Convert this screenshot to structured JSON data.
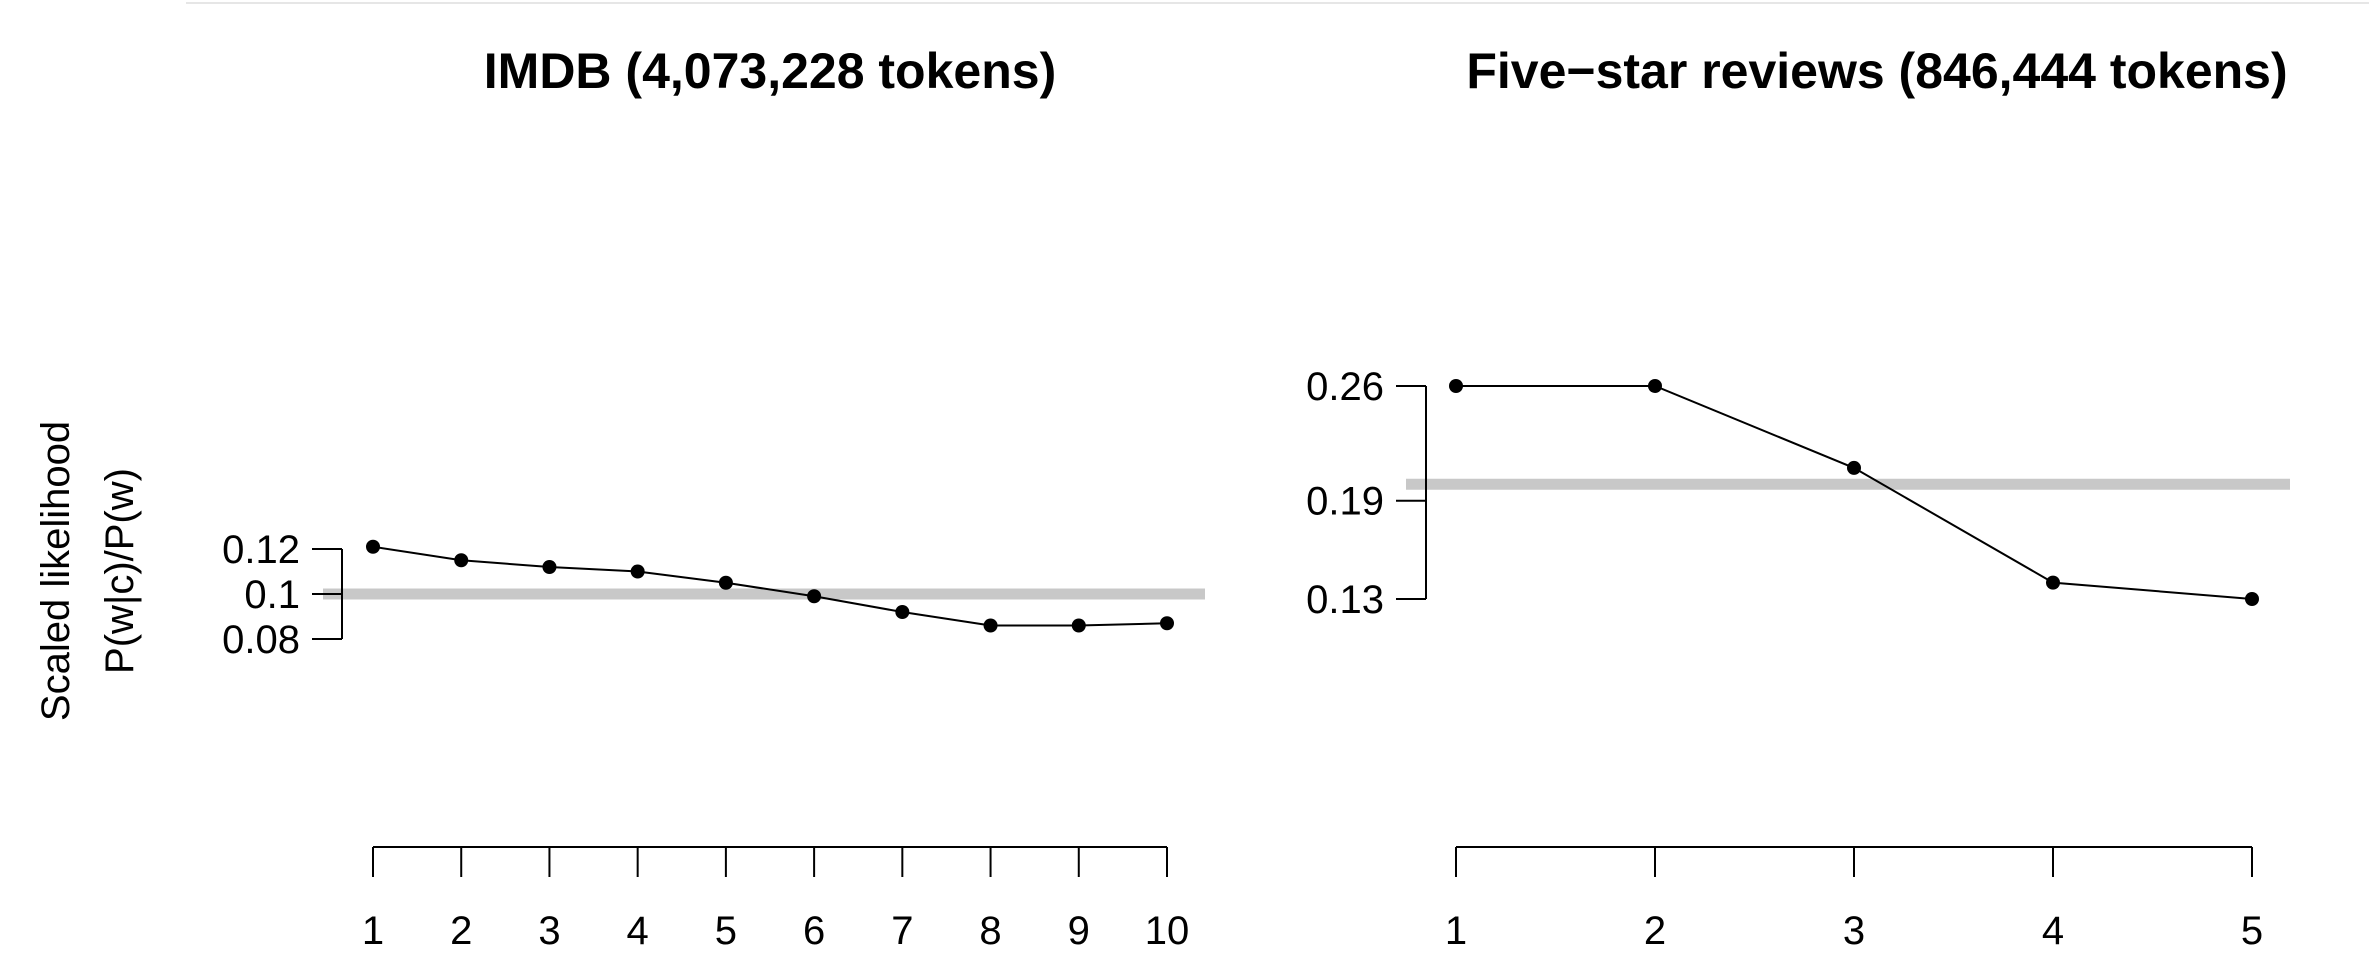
{
  "ylabel": {
    "line1": "Scaled likelihood",
    "line2": "P(w|c)/P(w)"
  },
  "chart_data": [
    {
      "type": "line",
      "title": "IMDB (4,073,228 tokens)",
      "xlabel": "",
      "ylabel": "Scaled likelihood P(w|c)/P(w)",
      "x": [
        1,
        2,
        3,
        4,
        5,
        6,
        7,
        8,
        9,
        10
      ],
      "series": [
        {
          "values": [
            0.121,
            0.115,
            0.112,
            0.11,
            0.105,
            0.099,
            0.092,
            0.086,
            0.086,
            0.087
          ]
        }
      ],
      "reference_line": 0.1,
      "reference_color": "#c8c8c8",
      "yticks": [
        0.08,
        0.1,
        0.12
      ],
      "ytick_labels": [
        "0.08",
        "0.1",
        "0.12"
      ],
      "xticks": [
        1,
        2,
        3,
        4,
        5,
        6,
        7,
        8,
        9,
        10
      ],
      "xtick_labels": [
        "1",
        "2",
        "3",
        "4",
        "5",
        "6",
        "7",
        "8",
        "9",
        "10"
      ],
      "grid": false,
      "legend": "none"
    },
    {
      "type": "line",
      "title": "Five−star reviews (846,444 tokens)",
      "xlabel": "",
      "ylabel": "",
      "x": [
        1,
        2,
        3,
        4,
        5
      ],
      "series": [
        {
          "values": [
            0.26,
            0.26,
            0.21,
            0.14,
            0.13
          ]
        }
      ],
      "reference_line": 0.2,
      "reference_color": "#c8c8c8",
      "yticks": [
        0.13,
        0.19,
        0.26
      ],
      "ytick_labels": [
        "0.13",
        "0.19",
        "0.26"
      ],
      "xticks": [
        1,
        2,
        3,
        4,
        5
      ],
      "xtick_labels": [
        "1",
        "2",
        "3",
        "4",
        "5"
      ],
      "grid": false,
      "legend": "none"
    }
  ]
}
